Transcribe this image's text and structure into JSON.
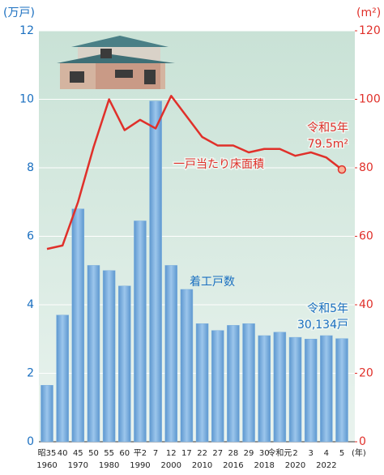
{
  "chart_data": {
    "type": "bar_line",
    "y_label": "(万戸)",
    "y2_label": "(m²)",
    "x_unit": "(年)",
    "categories": [
      "昭35",
      "40",
      "45",
      "50",
      "55",
      "60",
      "平2",
      "7",
      "12",
      "17",
      "22",
      "27",
      "28",
      "29",
      "30",
      "令和元",
      "2",
      "3",
      "4",
      "5"
    ],
    "category_years": [
      "1960",
      null,
      "1970",
      null,
      "1980",
      null,
      "1990",
      null,
      "2000",
      null,
      "2010",
      null,
      "2016",
      null,
      "2018",
      null,
      "2020",
      null,
      "2022",
      null
    ],
    "series": [
      {
        "name": "着工戸数",
        "type": "bar",
        "axis": "y",
        "color": "#7eb1de",
        "values": [
          1.65,
          3.7,
          6.8,
          5.15,
          5.0,
          4.55,
          6.45,
          9.95,
          5.15,
          4.45,
          3.45,
          3.25,
          3.4,
          3.45,
          3.1,
          3.2,
          3.05,
          3.0,
          3.1,
          3.0134
        ]
      },
      {
        "name": "一戸当たり床面積",
        "type": "line",
        "axis": "y2",
        "color": "#e0302a",
        "values": [
          56.3,
          57.3,
          70,
          86,
          100,
          91,
          94,
          91.5,
          101,
          95,
          89,
          86.5,
          86.5,
          84.5,
          85.5,
          85.5,
          83.5,
          84.5,
          83,
          79.5
        ]
      }
    ],
    "annotations": [
      {
        "lines": [
          "令和5年",
          "79.5m²"
        ],
        "color": "#e0302a"
      },
      {
        "lines": [
          "令和5年",
          "30,134戸"
        ],
        "color": "#1a6fc0"
      }
    ],
    "ylim": [
      0,
      12
    ],
    "yticks": [
      0,
      2,
      4,
      6,
      8,
      10,
      12
    ],
    "y2lim": [
      0,
      120
    ],
    "y2ticks": [
      0,
      20,
      40,
      60,
      80,
      100,
      120
    ],
    "grid": true
  }
}
